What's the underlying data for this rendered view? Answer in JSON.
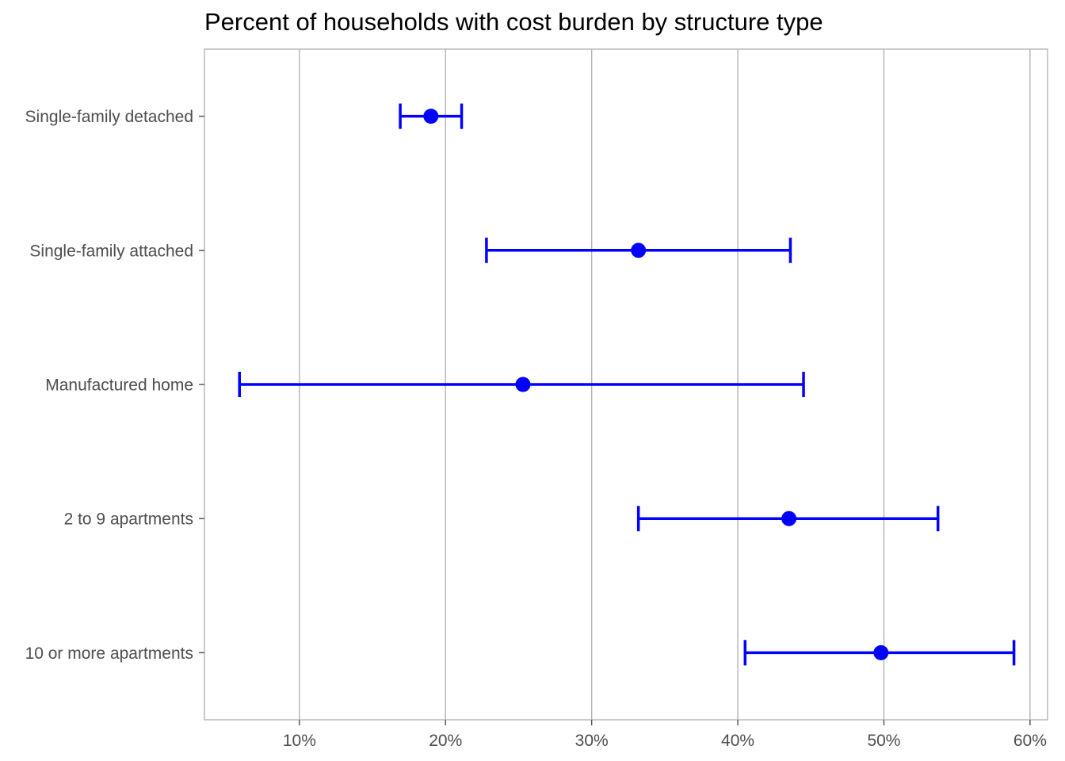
{
  "chart_data": {
    "type": "scatter",
    "title": "Percent of households with cost burden by structure type",
    "xlabel": "",
    "ylabel": "",
    "categories": [
      "Single-family detached",
      "Single-family attached",
      "Manufactured home",
      "2 to 9 apartments",
      "10 or more apartments"
    ],
    "estimates": [
      19.0,
      33.2,
      25.3,
      43.5,
      49.8
    ],
    "lower": [
      16.9,
      22.8,
      5.9,
      33.2,
      40.5
    ],
    "upper": [
      21.1,
      43.6,
      44.5,
      53.7,
      58.9
    ],
    "xlim": [
      3.5,
      61.2
    ],
    "x_ticks": [
      10,
      20,
      30,
      40,
      50,
      60
    ],
    "x_tick_labels": [
      "10%",
      "20%",
      "30%",
      "40%",
      "50%",
      "60%"
    ],
    "grid": "vertical major",
    "legend": "none",
    "colors": {
      "series": "#0000ff",
      "grid": "#b3b3b3",
      "border": "#b3b3b3",
      "text": "#4d4d4d"
    }
  }
}
